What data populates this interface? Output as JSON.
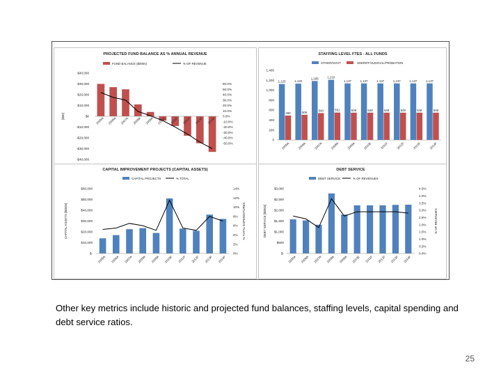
{
  "caption": "Other key metrics include historic and projected fund balances, staffing levels, capital spending and debt service ratios.",
  "page_number": "25",
  "colors": {
    "red": "#c0504d",
    "blue": "#4f81bd",
    "line": "#000000",
    "grid": "#d9d9d9",
    "axis": "#888888"
  },
  "chart_data": [
    {
      "type": "bar",
      "title": "PROJECTED FUND BALANCE AS % ANNUAL REVENUE",
      "legend": [
        "FUND BALANCE ($000s)",
        "% OF REVENUE"
      ],
      "ylabel": "($00)",
      "categories": [
        "2005A",
        "2006A",
        "2007A",
        "2008A",
        "2009A",
        "2010E",
        "2011F",
        "2012F",
        "2013F",
        "2014F"
      ],
      "bar_series": {
        "name": "FUND BALANCE ($000s)",
        "values": [
          30000,
          27000,
          25000,
          11000,
          4000,
          -4000,
          -9000,
          -18000,
          -25000,
          -33000
        ]
      },
      "line_series": {
        "name": "% OF REVENUE",
        "values": [
          44,
          35,
          30,
          9,
          1,
          -8,
          -20,
          -33,
          -48,
          -60
        ]
      },
      "ylim": [
        -40000,
        40000
      ],
      "yticks": [
        "$40,000",
        "$30,000",
        "$20,000",
        "$10,000",
        "$0",
        "-$10,000",
        "-$20,000",
        "-$30,000",
        "-$40,000"
      ],
      "y2lim": [
        -80,
        80
      ],
      "y2ticks": [
        "60.0%",
        "50.0%",
        "40.0%",
        "30.0%",
        "20.0%",
        "10.0%",
        "0.0%",
        "-10.0%",
        "-20.0%",
        "-30.0%",
        "-40.0%",
        "-50.0%"
      ]
    },
    {
      "type": "bar",
      "title": "STAFFING LEVEL FTES - ALL FUNDS",
      "legend": [
        "OTHER/GOVT",
        "SHERIFF/JUDICIAL/PROBATION"
      ],
      "categories": [
        "2005A",
        "2006A",
        "2007A",
        "2008A",
        "2009A",
        "2010E",
        "2011F",
        "2012F",
        "2013F",
        "2014F"
      ],
      "series": [
        {
          "name": "OTHER/GOVT",
          "values": [
            1125,
            1132,
            1185,
            1210,
            1137,
            1137,
            1137,
            1137,
            1137,
            1137
          ],
          "labels": [
            "1,125",
            "1,132",
            "1,185",
            "1,210",
            "1,137",
            "1,137",
            "1,137",
            "1,137",
            "1,137",
            "1,137"
          ]
        },
        {
          "name": "SHERIFF/JUDICIAL/PROBATION",
          "values": [
            490,
            506,
            540,
            551,
            549,
            549,
            549,
            549,
            549,
            549
          ],
          "labels": [
            "490",
            "506",
            "540",
            "551",
            "549",
            "549",
            "549",
            "549",
            "549",
            "549"
          ]
        }
      ],
      "ylim": [
        0,
        1400
      ],
      "yticks": [
        "1,400",
        "1,200",
        "1,000",
        "800",
        "600",
        "400",
        "200",
        "0"
      ]
    },
    {
      "type": "bar",
      "title": "CAPITAL IMPROVEMENT PROJECTS (CAPITAL ASSETS)",
      "legend": [
        "CAPITAL PROJECTS",
        "% TOTAL"
      ],
      "ylabel": "CAPITAL ASSETS [$000s]",
      "y2label": "% TOTAL EXPENDITURES",
      "categories": [
        "2005A",
        "2006A",
        "2007A",
        "2008A",
        "2009A",
        "2010E",
        "2011F",
        "2012F",
        "2013F",
        "2014F"
      ],
      "bar_series": {
        "name": "CAPITAL PROJECTS",
        "values": [
          14000,
          17000,
          22500,
          23500,
          19000,
          51000,
          23000,
          21000,
          36000,
          32000
        ]
      },
      "line_series": {
        "name": "% TOTAL",
        "values": [
          5.2,
          5.5,
          6.5,
          6.0,
          5.0,
          11.5,
          5.5,
          5.0,
          8.0,
          7.0
        ]
      },
      "ylim": [
        0,
        60000
      ],
      "yticks": [
        "$60,000",
        "$50,000",
        "$40,000",
        "$30,000",
        "$20,000",
        "$10,000",
        "$-"
      ],
      "y2lim": [
        0,
        14
      ],
      "y2ticks": [
        "14%",
        "12%",
        "10%",
        "8%",
        "6%",
        "4%",
        "2%",
        "0%"
      ]
    },
    {
      "type": "bar",
      "title": "DEBT SERVICE",
      "legend": [
        "DEBT SERVICE",
        "% OF REVENUES"
      ],
      "ylabel": "DEBT SERVICE [$000s]",
      "y2label": "% OF REVENUES",
      "categories": [
        "2005A",
        "2006A",
        "2007A",
        "2008A",
        "2009A",
        "2010E",
        "2011F",
        "2012F",
        "2013F",
        "2014F"
      ],
      "bar_series": {
        "name": "DEBT SERVICE",
        "values": [
          1580,
          1530,
          1330,
          2780,
          1800,
          2230,
          2230,
          2230,
          2250,
          2260
        ]
      },
      "line_series": {
        "name": "% OF REVENUES",
        "values": [
          2.6,
          2.4,
          1.8,
          3.8,
          2.6,
          2.9,
          2.9,
          2.9,
          2.9,
          2.8
        ]
      },
      "ylim": [
        0,
        3000
      ],
      "yticks": [
        "$3,000",
        "$2,500",
        "$2,000",
        "$1,500",
        "$1,000",
        "$500",
        "$-"
      ],
      "y2lim": [
        0,
        4.5
      ],
      "y2ticks": [
        "4.5%",
        "4.0%",
        "3.5%",
        "3.0%",
        "2.5%",
        "2.0%",
        "1.5%",
        "1.0%",
        "0.5%",
        "0.0%"
      ]
    }
  ]
}
